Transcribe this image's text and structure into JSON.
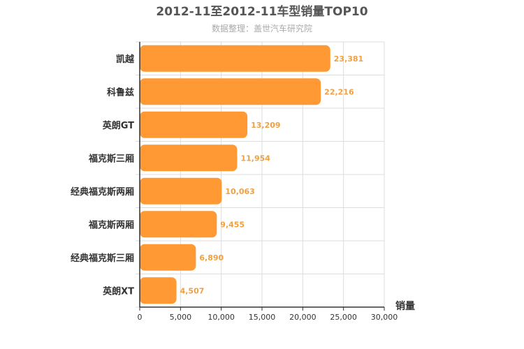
{
  "chart_data": {
    "type": "bar",
    "orientation": "horizontal",
    "title": "2012-11至2012-11车型销量TOP10",
    "subtitle": "数据整理：盖世汽车研究院",
    "xlabel": "销量",
    "ylabel": "",
    "categories": [
      "凯越",
      "科鲁兹",
      "英朗GT",
      "福克斯三厢",
      "经典福克斯两厢",
      "福克斯两厢",
      "经典福克斯三厢",
      "英朗XT"
    ],
    "values": [
      23381,
      22216,
      13209,
      11954,
      10063,
      9455,
      6890,
      4507
    ],
    "value_labels": [
      "23,381",
      "22,216",
      "13,209",
      "11,954",
      "10,063",
      "9,455",
      "6,890",
      "4,507"
    ],
    "xlim": [
      0,
      30000
    ],
    "ticks": [
      0,
      5000,
      10000,
      15000,
      20000,
      25000,
      30000
    ],
    "tick_labels": [
      "0",
      "5,000",
      "10,000",
      "15,000",
      "20,000",
      "25,000",
      "30,000"
    ],
    "grid": true,
    "colors": {
      "bar": "#ff9933",
      "data_label": "#f0a040",
      "grid": "#dddddd",
      "axis": "#333333"
    }
  }
}
